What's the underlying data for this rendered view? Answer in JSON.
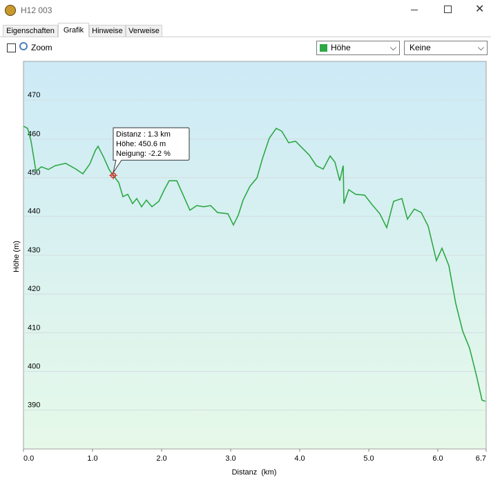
{
  "window": {
    "title": "H12 003"
  },
  "tabs": [
    "Eigenschaften",
    "Grafik",
    "Hinweise",
    "Verweise"
  ],
  "zoom_label": "Zoom",
  "secondary_selector": "Keine",
  "chart_data": {
    "type": "line",
    "xlabel": "Distanz  (km)",
    "ylabel": "Höhe (m)",
    "x": [
      0.0,
      0.06,
      0.11,
      0.18,
      0.26,
      0.36,
      0.46,
      0.61,
      0.76,
      0.86,
      0.96,
      1.04,
      1.08,
      1.16,
      1.24,
      1.3,
      1.38,
      1.44,
      1.51,
      1.58,
      1.64,
      1.71,
      1.78,
      1.86,
      1.96,
      2.04,
      2.11,
      2.22,
      2.3,
      2.41,
      2.51,
      2.61,
      2.71,
      2.81,
      2.96,
      3.04,
      3.11,
      3.18,
      3.28,
      3.38,
      3.46,
      3.56,
      3.66,
      3.74,
      3.84,
      3.94,
      4.04,
      4.14,
      4.24,
      4.34,
      4.44,
      4.51,
      4.58,
      4.63,
      4.64,
      4.71,
      4.81,
      4.94,
      5.04,
      5.16,
      5.26,
      5.36,
      5.48,
      5.56,
      5.66,
      5.76,
      5.86,
      5.98,
      6.06,
      6.16,
      6.26,
      6.36,
      6.46,
      6.56,
      6.64,
      6.69
    ],
    "series": [
      {
        "name": "Höhe",
        "color": "#2da844",
        "values": [
          463.3,
          462.7,
          459.4,
          451.7,
          452.8,
          452.1,
          453.1,
          453.7,
          452.2,
          451.0,
          453.5,
          457.0,
          458.1,
          455.3,
          452.1,
          450.6,
          448.7,
          445.1,
          445.7,
          443.3,
          444.6,
          442.5,
          444.2,
          442.5,
          443.9,
          446.9,
          449.2,
          449.2,
          446.0,
          441.6,
          442.8,
          442.5,
          442.8,
          441.0,
          440.7,
          437.8,
          440.3,
          444.2,
          447.8,
          449.9,
          454.9,
          460.2,
          462.7,
          462.0,
          459.0,
          459.4,
          457.6,
          455.8,
          453.1,
          452.2,
          455.6,
          454.0,
          449.2,
          453.1,
          443.3,
          446.9,
          445.7,
          445.5,
          443.2,
          440.7,
          437.1,
          443.9,
          444.6,
          439.3,
          441.9,
          441.0,
          437.5,
          428.6,
          431.8,
          427.3,
          417.5,
          410.4,
          406.0,
          398.9,
          392.6,
          392.3
        ]
      }
    ],
    "xlim": [
      0,
      6.7
    ],
    "ylim": [
      380,
      480
    ],
    "xticks": [
      {
        "value": 0,
        "label": "0.0"
      },
      {
        "value": 1,
        "label": "1.0"
      },
      {
        "value": 2,
        "label": "2.0"
      },
      {
        "value": 3,
        "label": "3.0"
      },
      {
        "value": 4,
        "label": "4.0"
      },
      {
        "value": 5,
        "label": "5.0"
      },
      {
        "value": 6,
        "label": "6.0"
      },
      {
        "value": 6.7,
        "label": "6.7"
      }
    ],
    "yticks": [
      390,
      400,
      410,
      420,
      430,
      440,
      450,
      460,
      470
    ],
    "grid": true,
    "tooltip": {
      "x": 1.3,
      "y": 450.6,
      "lines": [
        "Distanz : 1.3 km",
        "Höhe: 450.6 m",
        "Neigung: -2.2 %"
      ]
    }
  }
}
